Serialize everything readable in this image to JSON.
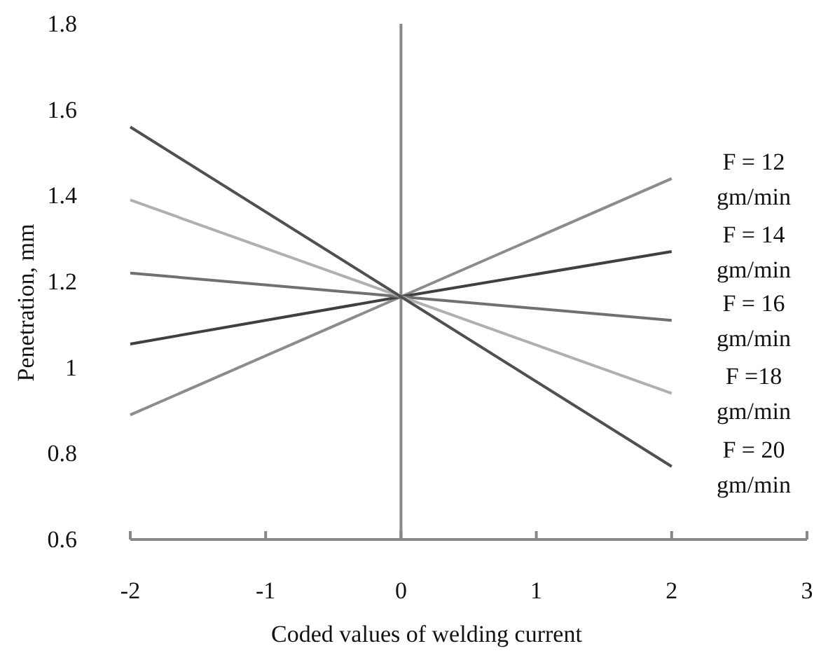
{
  "chart_data": {
    "type": "line",
    "xlabel": "Coded values of welding current",
    "ylabel": "Penetration, mm",
    "xlim": [
      -2,
      3
    ],
    "xticks": [
      -2,
      -1,
      0,
      1,
      2,
      3
    ],
    "ylim": [
      0.6,
      1.8
    ],
    "yticks": [
      0.6,
      0.8,
      1,
      1.2,
      1.4,
      1.6,
      1.8
    ],
    "x": [
      -2,
      0,
      2
    ],
    "series": [
      {
        "name": "F = 12 gm/min",
        "color": "#8c8c8c",
        "values": [
          0.89,
          1.165,
          1.44
        ]
      },
      {
        "name": "F = 14 gm/min",
        "color": "#404040",
        "values": [
          1.055,
          1.165,
          1.27
        ]
      },
      {
        "name": "F = 16 gm/min",
        "color": "#707070",
        "values": [
          1.22,
          1.165,
          1.11
        ]
      },
      {
        "name": "F =18 gm/min",
        "color": "#b0b0b0",
        "values": [
          1.39,
          1.165,
          0.94
        ]
      },
      {
        "name": "F = 20 gm/min",
        "color": "#505050",
        "values": [
          1.56,
          1.165,
          0.77
        ]
      }
    ]
  }
}
